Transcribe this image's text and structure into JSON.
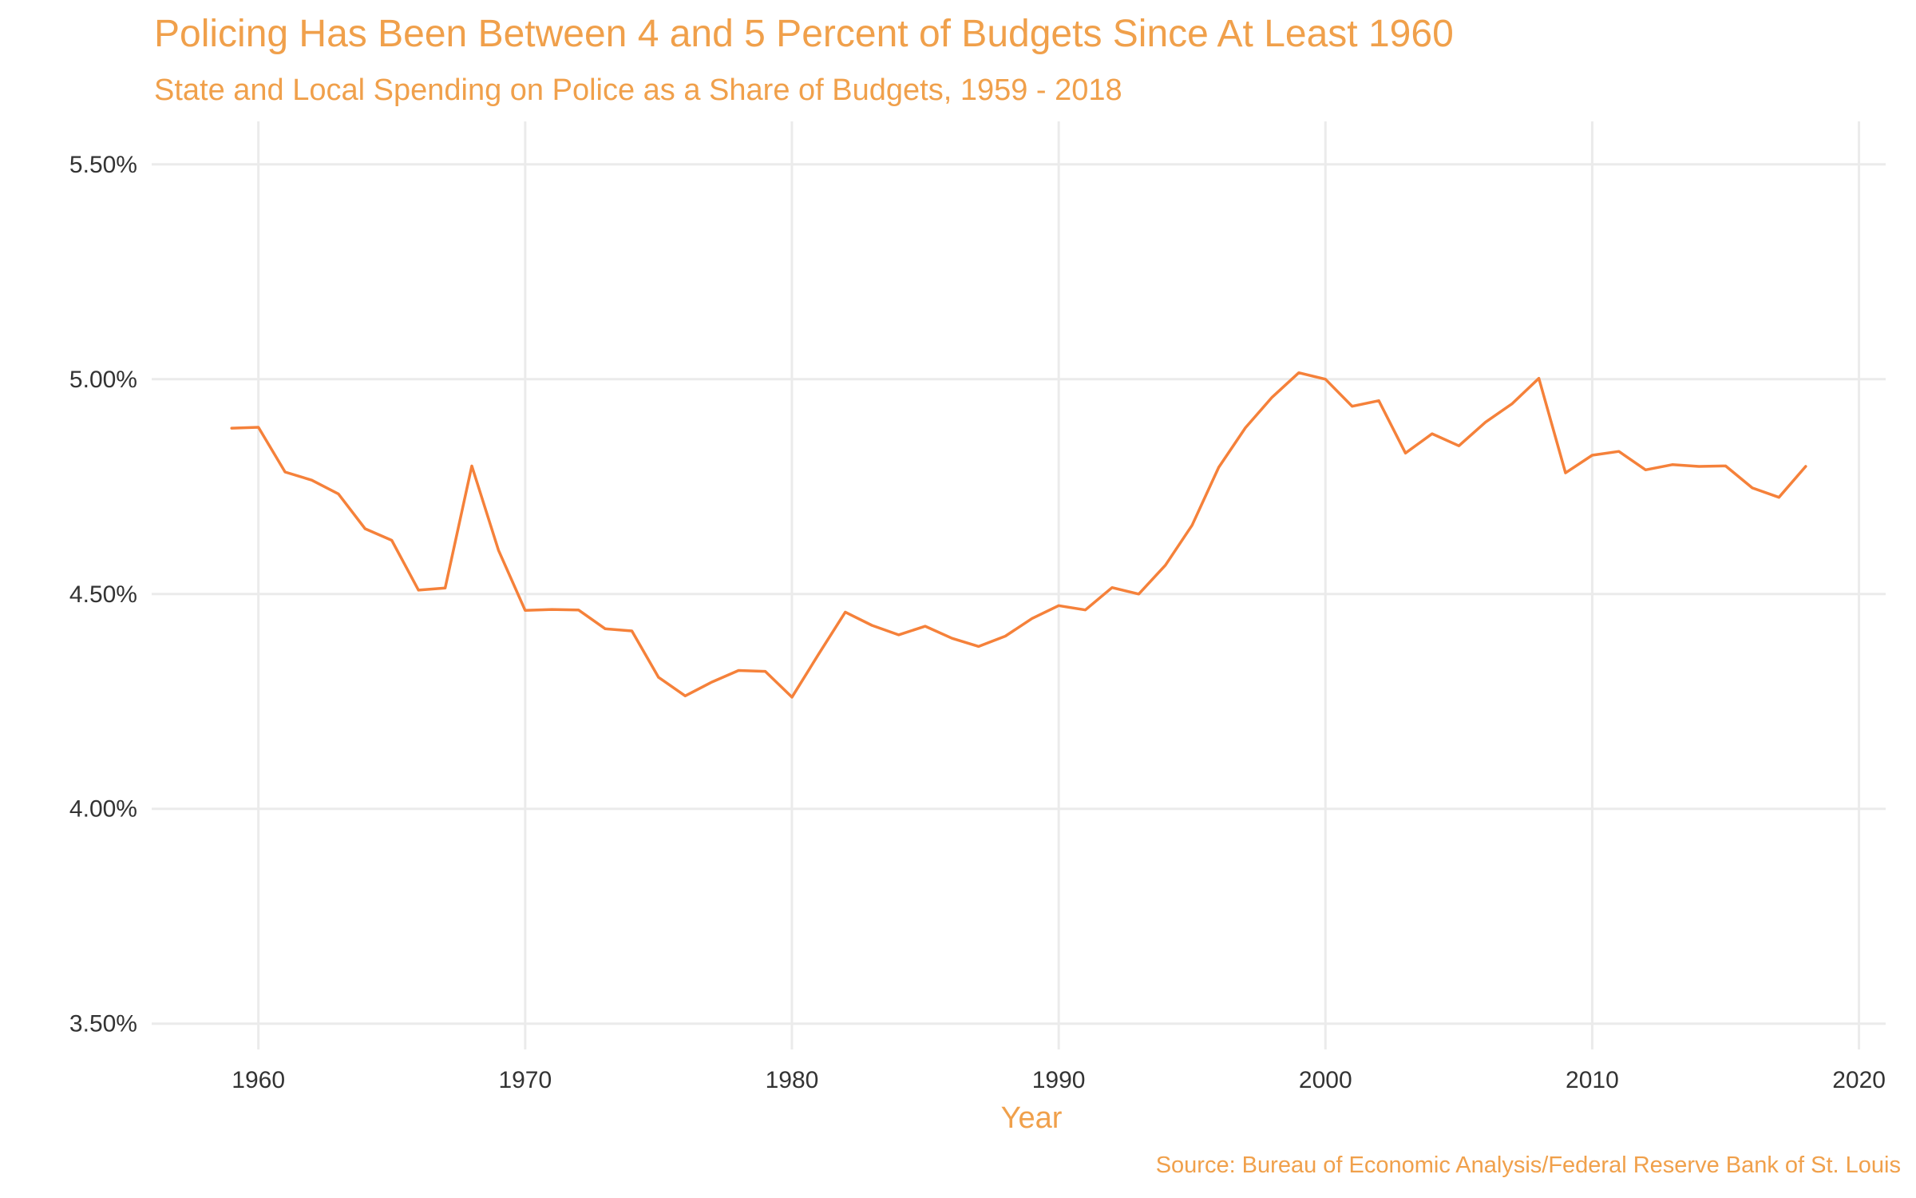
{
  "chart_data": {
    "type": "line",
    "title": "Policing Has Been Between 4 and 5 Percent of Budgets Since At Least 1960",
    "subtitle": "State and Local Spending on Police as a Share of Budgets, 1959 - 2018",
    "xlabel": "Year",
    "ylabel": "",
    "caption": "Source: Bureau of Economic Analysis/Federal Reserve Bank of St. Louis",
    "xlim": [
      1956,
      2021
    ],
    "ylim": [
      3.44,
      5.6
    ],
    "x_ticks": [
      {
        "value": 1960,
        "label": "1960"
      },
      {
        "value": 1970,
        "label": "1970"
      },
      {
        "value": 1980,
        "label": "1980"
      },
      {
        "value": 1990,
        "label": "1990"
      },
      {
        "value": 2000,
        "label": "2000"
      },
      {
        "value": 2010,
        "label": "2010"
      },
      {
        "value": 2020,
        "label": "2020"
      }
    ],
    "y_ticks": [
      {
        "value": 3.5,
        "label": "3.50%"
      },
      {
        "value": 4.0,
        "label": "4.00%"
      },
      {
        "value": 4.5,
        "label": "4.50%"
      },
      {
        "value": 5.0,
        "label": "5.00%"
      },
      {
        "value": 5.5,
        "label": "5.50%"
      }
    ],
    "grid": true,
    "line_color": "#f5813a",
    "series": [
      {
        "x": [
          1959,
          1960,
          1961,
          1962,
          1963,
          1964,
          1965,
          1966,
          1967,
          1968,
          1969,
          1970,
          1971,
          1972,
          1973,
          1974,
          1975,
          1976,
          1977,
          1978,
          1979,
          1980,
          1981,
          1982,
          1983,
          1984,
          1985,
          1986,
          1987,
          1988,
          1989,
          1990,
          1991,
          1992,
          1993,
          1994,
          1995,
          1996,
          1997,
          1998,
          1999,
          2000,
          2001,
          2002,
          2003,
          2004,
          2005,
          2006,
          2007,
          2008,
          2009,
          2010,
          2011,
          2012,
          2013,
          2014,
          2015,
          2016,
          2017,
          2018
        ],
        "values": [
          4.886,
          4.888,
          4.784,
          4.765,
          4.733,
          4.652,
          4.625,
          4.509,
          4.514,
          4.798,
          4.602,
          4.462,
          4.464,
          4.463,
          4.419,
          4.414,
          4.306,
          4.263,
          4.295,
          4.322,
          4.32,
          4.26,
          4.36,
          4.458,
          4.427,
          4.405,
          4.425,
          4.397,
          4.378,
          4.402,
          4.443,
          4.473,
          4.463,
          4.515,
          4.5,
          4.567,
          4.66,
          4.795,
          4.887,
          4.958,
          5.015,
          5.0,
          4.937,
          4.95,
          4.828,
          4.873,
          4.845,
          4.9,
          4.943,
          5.002,
          4.782,
          4.823,
          4.832,
          4.789,
          4.801,
          4.797,
          4.798,
          4.747,
          4.725,
          4.797
        ]
      }
    ]
  }
}
